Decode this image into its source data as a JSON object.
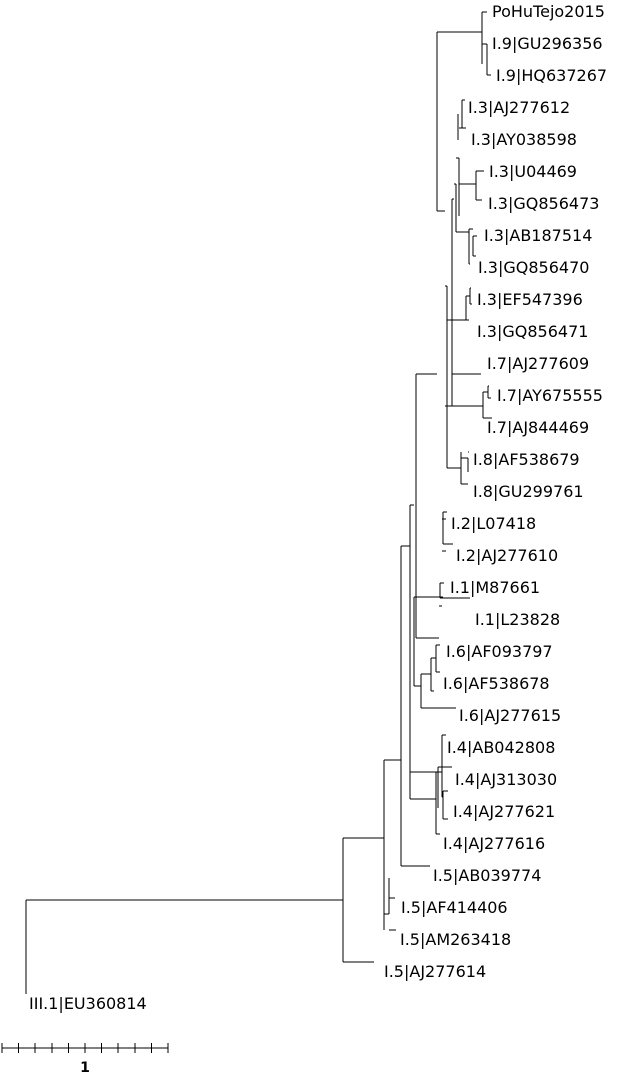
{
  "tree": {
    "leaves": [
      "PoHuTejo2015",
      "I.9|GU296356",
      "I.9|HQ637267",
      "I.3|AJ277612",
      "I.3|AY038598",
      "I.3|U04469",
      "I.3|GQ856473",
      "I.3|AB187514",
      "I.3|GQ856470",
      "I.3|EF547396",
      "I.3|GQ856471",
      "I.7|AJ277609",
      "I.7|AY675555",
      "I.7|AJ844469",
      "I.8|AF538679",
      "I.8|GU299761",
      "I.2|L07418",
      "I.2|AJ277610",
      "I.1|M87661",
      "I.1|L23828",
      "I.6|AF093797",
      "I.6|AF538678",
      "I.6|AJ277615",
      "I.4|AB042808",
      "I.4|AJ313030",
      "I.4|AJ277621",
      "I.4|AJ277616",
      "I.5|AB039774",
      "I.5|AF414406",
      "I.5|AM263418",
      "I.5|AJ277614",
      "III.1|EU360814"
    ],
    "scale_bar": {
      "label": "1"
    },
    "line_color": "#000000"
  }
}
